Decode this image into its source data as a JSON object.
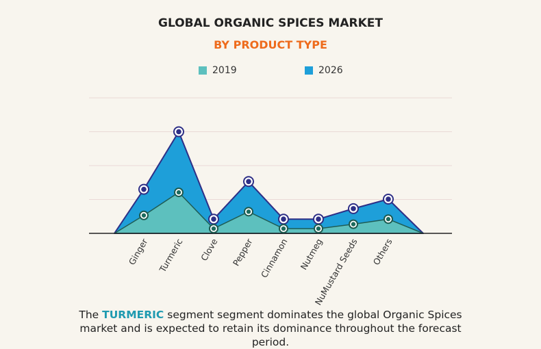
{
  "colors": {
    "series_2019": "#5dc0be",
    "series_2026": "#1e9fd9",
    "outline": "#2e2f86",
    "subtitle": "#ee6b1c",
    "highlight": "#1f9ab0"
  },
  "caption": {
    "lead": "The ",
    "highlight": "TURMERIC",
    "rest": " segment segment dominates the global Organic Spices market and is expected to retain its dominance throughout the forecast period."
  },
  "chart_data": {
    "type": "area",
    "title": "GLOBAL ORGANIC SPICES MARKET",
    "subtitle": "BY PRODUCT TYPE",
    "categories": [
      "Ginger",
      "Turmeric",
      "Clove",
      "Pepper",
      "Cinnamon",
      "Nutmeg",
      "NuMustard Seeds",
      "Others"
    ],
    "series": [
      {
        "name": "2019",
        "values": [
          0.53,
          1.21,
          0.14,
          0.64,
          0.14,
          0.14,
          0.27,
          0.42
        ]
      },
      {
        "name": "2026",
        "values": [
          1.3,
          3.0,
          0.42,
          1.53,
          0.42,
          0.42,
          0.73,
          1.01
        ]
      }
    ],
    "ylim": [
      0,
      4
    ],
    "grid": true,
    "legend_position": "top-center",
    "xlabel": "",
    "ylabel": ""
  }
}
